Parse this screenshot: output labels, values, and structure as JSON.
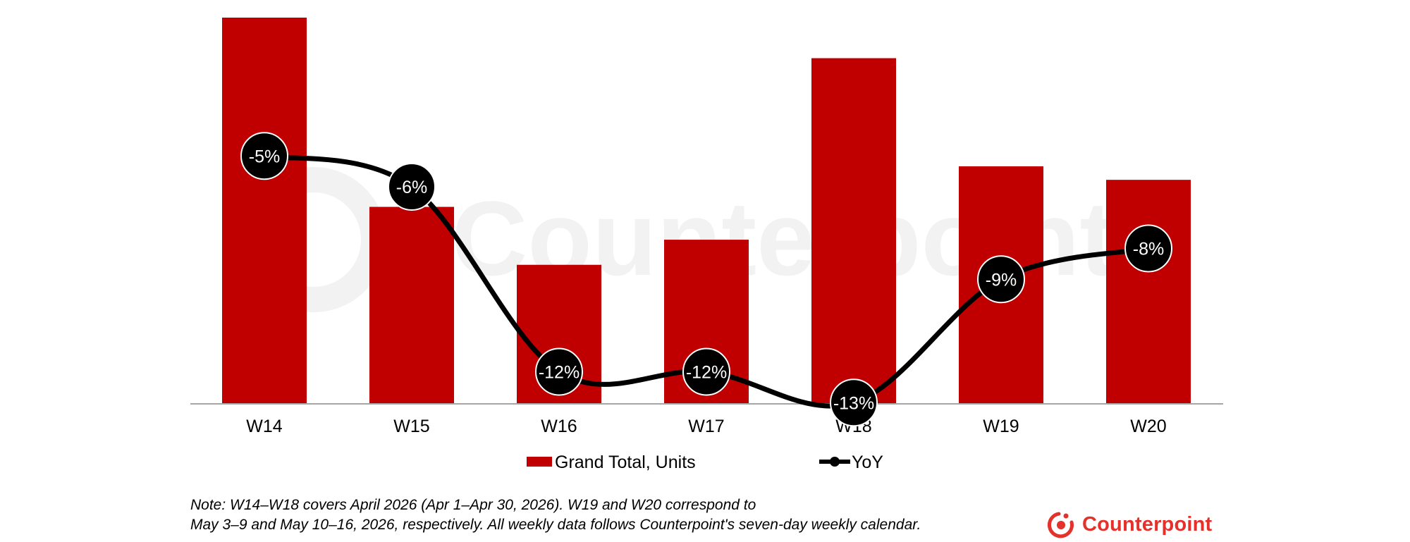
{
  "chart_data": {
    "type": "bar",
    "categories": [
      "W14",
      "W15",
      "W16",
      "W17",
      "W18",
      "W19",
      "W20"
    ],
    "series": [
      {
        "name": "Grand Total, Units",
        "kind": "bar",
        "axis": "primary",
        "color": "#c00000",
        "values": [
          100,
          51,
          36,
          42.5,
          89.5,
          61.5,
          58
        ]
      },
      {
        "name": "YoY",
        "kind": "line",
        "axis": "secondary",
        "color": "#000000",
        "smooth": true,
        "values": [
          -5,
          -6,
          -12,
          -12,
          -13,
          -9,
          -8
        ],
        "labels": [
          "-5%",
          "-6%",
          "-12%",
          "-12%",
          "-13%",
          "-9%",
          "-8%"
        ]
      }
    ],
    "ylim": [
      0,
      100
    ],
    "y2lim": [
      -14,
      -2
    ],
    "y_axis_visible": false,
    "grid": false,
    "legend": "bottom",
    "watermark": "Counterpoint"
  },
  "note": {
    "line1": "Note: W14–W18 covers April 2026 (Apr 1–Apr 30, 2026). W19 and W20 correspond to",
    "line2": "May 3–9 and May 10–16, 2026, respectively. All weekly data follows Counterpoint's seven-day weekly calendar."
  },
  "brand": {
    "name": "Counterpoint",
    "color": "#e4312b",
    "icon": "counterpoint-logo-icon"
  }
}
